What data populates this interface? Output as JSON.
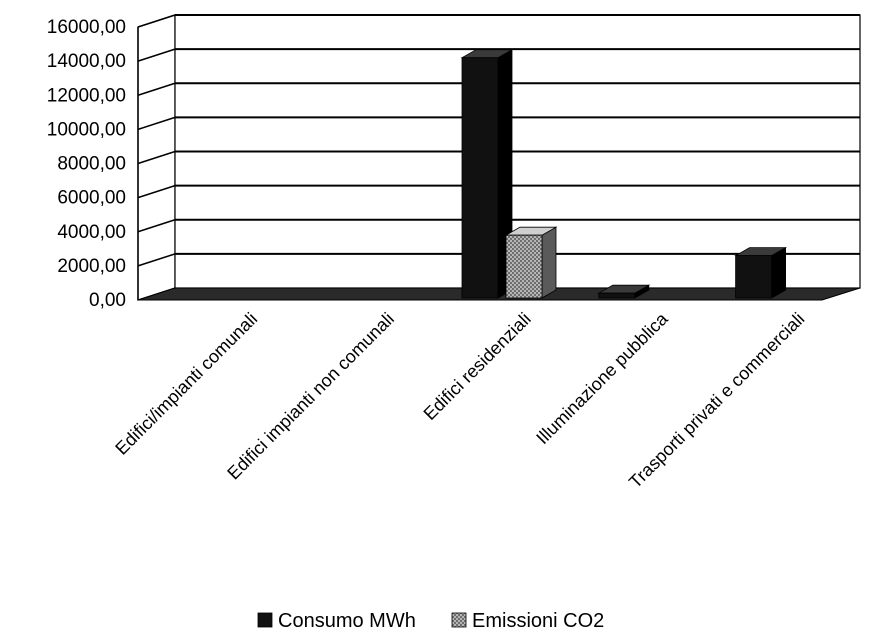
{
  "chart_data": {
    "type": "bar",
    "title": "",
    "xlabel": "",
    "ylabel": "",
    "ylim": [
      0,
      16000
    ],
    "yticks": [
      "0,00",
      "2000,00",
      "4000,00",
      "6000,00",
      "8000,00",
      "10000,00",
      "12000,00",
      "14000,00",
      "16000,00"
    ],
    "grid": true,
    "legend_position": "bottom",
    "categories": [
      "Edifici/impianti comunali",
      "Edifici impianti non comunali",
      "Edifici residenziali",
      "Illuminazione pubblica",
      "Trasporti privati e commerciali"
    ],
    "series": [
      {
        "name": "Consumo MWh",
        "color": "#111111",
        "values": [
          0,
          0,
          14200,
          400,
          2600
        ]
      },
      {
        "name": "Emissioni CO2",
        "color": "#9a9a9a",
        "values": [
          0,
          0,
          3800,
          0,
          0
        ]
      }
    ]
  }
}
